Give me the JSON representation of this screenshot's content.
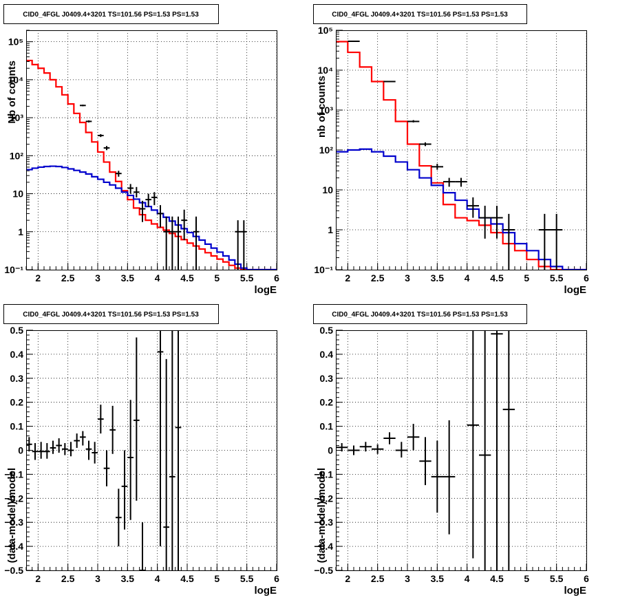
{
  "chart_data": [
    {
      "type": "line",
      "title": "CID0_4FGL J0409.4+3201 TS=101.56 PS=1.53 PS=1.53",
      "xlabel": "logE",
      "ylabel": "Nb of counts",
      "xlim": [
        1.8,
        6.0
      ],
      "ylim": [
        0.1,
        200000
      ],
      "yscale": "log",
      "grid": true,
      "xticks": [
        "2",
        "2.5",
        "3",
        "3.5",
        "4",
        "4.5",
        "5",
        "5.5",
        "6"
      ],
      "yticks": [
        "10⁻¹",
        "1",
        "10",
        "10²",
        "10³",
        "10⁴",
        "10⁵"
      ],
      "series": [
        {
          "color": "#ff0000",
          "style": "step",
          "edges": [
            1.8,
            1.9,
            2.0,
            2.1,
            2.2,
            2.3,
            2.4,
            2.5,
            2.6,
            2.7,
            2.8,
            2.9,
            3.0,
            3.1,
            3.2,
            3.3,
            3.4,
            3.5,
            3.6,
            3.7,
            3.8,
            3.9,
            4.0,
            4.1,
            4.2,
            4.3,
            4.4,
            4.5,
            4.6,
            4.7,
            4.8,
            4.9,
            5.0,
            5.1,
            5.2,
            5.3,
            5.4,
            5.5,
            5.6,
            5.7,
            5.8,
            5.9,
            6.0
          ],
          "values": [
            32000,
            25000,
            20000,
            15000,
            10000,
            6500,
            4000,
            2300,
            1300,
            750,
            410,
            230,
            125,
            68,
            37,
            21,
            12,
            7,
            4.2,
            2.8,
            2.0,
            1.6,
            1.3,
            1.1,
            0.9,
            0.75,
            0.62,
            0.5,
            0.42,
            0.35,
            0.28,
            0.23,
            0.19,
            0.16,
            0.13,
            0.11,
            0.1,
            0.1,
            0.1,
            0.1,
            0.1,
            0.1
          ]
        },
        {
          "color": "#0000cc",
          "style": "step",
          "edges": [
            1.8,
            1.9,
            2.0,
            2.1,
            2.2,
            2.3,
            2.4,
            2.5,
            2.6,
            2.7,
            2.8,
            2.9,
            3.0,
            3.1,
            3.2,
            3.3,
            3.4,
            3.5,
            3.6,
            3.7,
            3.8,
            3.9,
            4.0,
            4.1,
            4.2,
            4.3,
            4.4,
            4.5,
            4.6,
            4.7,
            4.8,
            4.9,
            5.0,
            5.1,
            5.2,
            5.3,
            5.4,
            5.5,
            5.6,
            5.7,
            5.8,
            5.9,
            6.0
          ],
          "values": [
            43,
            47,
            50,
            52,
            53,
            52,
            49,
            45,
            41,
            37,
            33,
            28,
            24,
            20,
            17,
            14,
            11,
            9,
            7.2,
            5.8,
            4.6,
            3.7,
            3.0,
            2.4,
            1.9,
            1.5,
            1.2,
            0.95,
            0.75,
            0.6,
            0.47,
            0.37,
            0.29,
            0.23,
            0.18,
            0.14,
            0.11,
            0.1,
            0.1,
            0.1,
            0.1,
            0.1
          ]
        },
        {
          "color": "#000000",
          "style": "errorbar",
          "points": [
            {
              "x": 2.75,
              "y": 2100,
              "xerr": 0.05,
              "ylo": 2000,
              "yhi": 2200
            },
            {
              "x": 2.85,
              "y": 800,
              "xerr": 0.05,
              "ylo": 750,
              "yhi": 850
            },
            {
              "x": 3.05,
              "y": 340,
              "xerr": 0.05,
              "ylo": 310,
              "yhi": 370
            },
            {
              "x": 3.15,
              "y": 160,
              "xerr": 0.05,
              "ylo": 140,
              "yhi": 180
            },
            {
              "x": 3.35,
              "y": 34,
              "xerr": 0.05,
              "ylo": 28,
              "yhi": 40
            },
            {
              "x": 3.55,
              "y": 14,
              "xerr": 0.05,
              "ylo": 10,
              "yhi": 18
            },
            {
              "x": 3.65,
              "y": 11,
              "xerr": 0.05,
              "ylo": 8,
              "yhi": 15
            },
            {
              "x": 3.75,
              "y": 4,
              "xerr": 0.05,
              "ylo": 1.8,
              "yhi": 6.5
            },
            {
              "x": 3.85,
              "y": 7,
              "xerr": 0.05,
              "ylo": 4.5,
              "yhi": 10
            },
            {
              "x": 3.95,
              "y": 8,
              "xerr": 0.05,
              "ylo": 5,
              "yhi": 11
            },
            {
              "x": 4.05,
              "y": 3,
              "xerr": 0.05,
              "ylo": 1.3,
              "yhi": 5
            },
            {
              "x": 4.15,
              "y": 1,
              "xerr": 0.05,
              "ylo": 0.1,
              "yhi": 2.5
            },
            {
              "x": 4.25,
              "y": 1,
              "xerr": 0.05,
              "ylo": 0.1,
              "yhi": 2.5
            },
            {
              "x": 4.35,
              "y": 1,
              "xerr": 0.05,
              "ylo": 0.1,
              "yhi": 2.5
            },
            {
              "x": 4.45,
              "y": 2,
              "xerr": 0.05,
              "ylo": 0.6,
              "yhi": 3.8
            },
            {
              "x": 4.65,
              "y": 1,
              "xerr": 0.05,
              "ylo": 0.1,
              "yhi": 2.5
            },
            {
              "x": 5.35,
              "y": 1,
              "xerr": 0.05,
              "ylo": 0.1,
              "yhi": 2.0
            },
            {
              "x": 5.45,
              "y": 1,
              "xerr": 0.05,
              "ylo": 0.1,
              "yhi": 2.0
            }
          ]
        }
      ]
    },
    {
      "type": "line",
      "title": "CID0_4FGL J0409.4+3201 TS=101.56 PS=1.53 PS=1.53",
      "xlabel": "logE",
      "ylabel": "nb of counts",
      "xlim": [
        1.8,
        6.0
      ],
      "ylim": [
        0.1,
        100000
      ],
      "yscale": "log",
      "grid": true,
      "xticks": [
        "2",
        "2.5",
        "3",
        "3.5",
        "4",
        "4.5",
        "5",
        "5.5",
        "6"
      ],
      "yticks": [
        "10⁻¹",
        "1",
        "10",
        "10²",
        "10³",
        "10⁴",
        "10⁵"
      ],
      "series": [
        {
          "color": "#ff0000",
          "style": "step",
          "edges": [
            1.8,
            2.0,
            2.2,
            2.4,
            2.6,
            2.8,
            3.0,
            3.2,
            3.4,
            3.6,
            3.8,
            4.0,
            4.2,
            4.4,
            4.6,
            4.8,
            5.0,
            5.2,
            5.4,
            5.6,
            5.8,
            6.0
          ],
          "values": [
            52000,
            28000,
            12000,
            5200,
            1800,
            520,
            140,
            40,
            15,
            4.3,
            2.0,
            1.7,
            1.3,
            0.85,
            0.45,
            0.3,
            0.18,
            0.12,
            0.1,
            0.1,
            0.1
          ]
        },
        {
          "color": "#0000cc",
          "style": "step",
          "edges": [
            1.8,
            2.0,
            2.2,
            2.4,
            2.6,
            2.8,
            3.0,
            3.2,
            3.4,
            3.6,
            3.8,
            4.0,
            4.2,
            4.4,
            4.6,
            4.8,
            5.0,
            5.2,
            5.4,
            5.6,
            5.8,
            6.0
          ],
          "values": [
            90,
            100,
            105,
            90,
            70,
            50,
            32,
            20,
            13,
            8.5,
            5.5,
            3.3,
            2.0,
            1.4,
            0.85,
            0.45,
            0.3,
            0.18,
            0.12,
            0.1,
            0.1
          ]
        },
        {
          "color": "#000000",
          "style": "errorbar",
          "points": [
            {
              "x": 2.1,
              "y": 53000,
              "xerr": 0.1,
              "ylo": 51000,
              "yhi": 55000
            },
            {
              "x": 2.7,
              "y": 5200,
              "xerr": 0.1,
              "ylo": 5000,
              "yhi": 5400
            },
            {
              "x": 3.1,
              "y": 520,
              "xerr": 0.1,
              "ylo": 490,
              "yhi": 560
            },
            {
              "x": 3.3,
              "y": 140,
              "xerr": 0.1,
              "ylo": 125,
              "yhi": 155
            },
            {
              "x": 3.5,
              "y": 38,
              "xerr": 0.1,
              "ylo": 32,
              "yhi": 45
            },
            {
              "x": 3.7,
              "y": 16,
              "xerr": 0.1,
              "ylo": 12,
              "yhi": 20
            },
            {
              "x": 3.9,
              "y": 16,
              "xerr": 0.1,
              "ylo": 12,
              "yhi": 20
            },
            {
              "x": 4.1,
              "y": 4,
              "xerr": 0.1,
              "ylo": 2,
              "yhi": 6.5
            },
            {
              "x": 4.3,
              "y": 2,
              "xerr": 0.1,
              "ylo": 0.6,
              "yhi": 4
            },
            {
              "x": 4.5,
              "y": 2,
              "xerr": 0.1,
              "ylo": 0.6,
              "yhi": 4
            },
            {
              "x": 4.7,
              "y": 1,
              "xerr": 0.1,
              "ylo": 0.1,
              "yhi": 2.5
            },
            {
              "x": 5.3,
              "y": 1,
              "xerr": 0.1,
              "ylo": 0.1,
              "yhi": 2.5
            },
            {
              "x": 5.5,
              "y": 1,
              "xerr": 0.1,
              "ylo": 0.1,
              "yhi": 2.5
            }
          ]
        }
      ]
    },
    {
      "type": "scatter",
      "title": "CID0_4FGL J0409.4+3201 TS=101.56 PS=1.53 PS=1.53",
      "xlabel": "logE",
      "ylabel": "(data-model)/model",
      "xlim": [
        1.8,
        6.0
      ],
      "ylim": [
        -0.5,
        0.5
      ],
      "grid": true,
      "xticks": [
        "2",
        "2.5",
        "3",
        "3.5",
        "4",
        "4.5",
        "5",
        "5.5",
        "6"
      ],
      "yticks": [
        "−0.5",
        "−0.4",
        "−0.3",
        "−0.2",
        "−0.1",
        "0",
        "0.1",
        "0.2",
        "0.3",
        "0.4",
        "0.5"
      ],
      "series": [
        {
          "color": "#000000",
          "style": "errorbar",
          "points": [
            {
              "x": 1.85,
              "y": 0.025,
              "xerr": 0.05,
              "ylo": -0.005,
              "yhi": 0.055
            },
            {
              "x": 1.95,
              "y": -0.005,
              "xerr": 0.05,
              "ylo": -0.04,
              "yhi": 0.03
            },
            {
              "x": 2.05,
              "y": -0.005,
              "xerr": 0.05,
              "ylo": -0.035,
              "yhi": 0.035
            },
            {
              "x": 2.15,
              "y": -0.005,
              "xerr": 0.05,
              "ylo": -0.035,
              "yhi": 0.03
            },
            {
              "x": 2.25,
              "y": 0.01,
              "xerr": 0.05,
              "ylo": -0.015,
              "yhi": 0.04
            },
            {
              "x": 2.35,
              "y": 0.02,
              "xerr": 0.05,
              "ylo": -0.01,
              "yhi": 0.05
            },
            {
              "x": 2.45,
              "y": 0.005,
              "xerr": 0.05,
              "ylo": -0.02,
              "yhi": 0.03
            },
            {
              "x": 2.55,
              "y": 0.0,
              "xerr": 0.05,
              "ylo": -0.025,
              "yhi": 0.035
            },
            {
              "x": 2.65,
              "y": 0.04,
              "xerr": 0.05,
              "ylo": 0.01,
              "yhi": 0.07
            },
            {
              "x": 2.75,
              "y": 0.055,
              "xerr": 0.05,
              "ylo": 0.02,
              "yhi": 0.08
            },
            {
              "x": 2.85,
              "y": 0.005,
              "xerr": 0.05,
              "ylo": -0.04,
              "yhi": 0.04
            },
            {
              "x": 2.95,
              "y": -0.01,
              "xerr": 0.05,
              "ylo": -0.055,
              "yhi": 0.035
            },
            {
              "x": 3.05,
              "y": 0.13,
              "xerr": 0.05,
              "ylo": 0.07,
              "yhi": 0.19
            },
            {
              "x": 3.15,
              "y": -0.075,
              "xerr": 0.05,
              "ylo": -0.15,
              "yhi": 0.0
            },
            {
              "x": 3.25,
              "y": 0.085,
              "xerr": 0.05,
              "ylo": -0.015,
              "yhi": 0.185
            },
            {
              "x": 3.35,
              "y": -0.28,
              "xerr": 0.05,
              "ylo": -0.4,
              "yhi": -0.16
            },
            {
              "x": 3.45,
              "y": -0.15,
              "xerr": 0.05,
              "ylo": -0.33,
              "yhi": 0.0
            },
            {
              "x": 3.55,
              "y": -0.03,
              "xerr": 0.05,
              "ylo": -0.29,
              "yhi": 0.21
            },
            {
              "x": 3.65,
              "y": 0.125,
              "xerr": 0.05,
              "ylo": -0.21,
              "yhi": 0.47
            },
            {
              "x": 3.75,
              "y": -0.5,
              "xerr": 0.05,
              "ylo": -0.5,
              "yhi": -0.3
            },
            {
              "x": 4.05,
              "y": 0.41,
              "xerr": 0.05,
              "ylo": -0.4,
              "yhi": 0.5
            },
            {
              "x": 4.15,
              "y": -0.32,
              "xerr": 0.05,
              "ylo": -0.5,
              "yhi": 0.38
            },
            {
              "x": 4.25,
              "y": -0.11,
              "xerr": 0.05,
              "ylo": -0.5,
              "yhi": 0.5
            },
            {
              "x": 4.35,
              "y": 0.095,
              "xerr": 0.05,
              "ylo": -0.5,
              "yhi": 0.5
            }
          ]
        }
      ]
    },
    {
      "type": "scatter",
      "title": "CID0_4FGL J0409.4+3201 TS=101.56 PS=1.53 PS=1.53",
      "xlabel": "logE",
      "ylabel": "(data-model)/model",
      "xlim": [
        1.8,
        6.0
      ],
      "ylim": [
        -0.5,
        0.5
      ],
      "grid": true,
      "xticks": [
        "2",
        "2.5",
        "3",
        "3.5",
        "4",
        "4.5",
        "5",
        "5.5",
        "6"
      ],
      "yticks": [
        "−0.5",
        "−0.4",
        "−0.3",
        "−0.2",
        "−0.1",
        "0",
        "0.1",
        "0.2",
        "0.3",
        "0.4",
        "0.5"
      ],
      "series": [
        {
          "color": "#000000",
          "style": "errorbar",
          "points": [
            {
              "x": 1.9,
              "y": 0.012,
              "xerr": 0.1,
              "ylo": -0.005,
              "yhi": 0.03
            },
            {
              "x": 2.1,
              "y": 0.0,
              "xerr": 0.1,
              "ylo": -0.02,
              "yhi": 0.02
            },
            {
              "x": 2.3,
              "y": 0.015,
              "xerr": 0.1,
              "ylo": -0.005,
              "yhi": 0.035
            },
            {
              "x": 2.5,
              "y": 0.005,
              "xerr": 0.1,
              "ylo": -0.015,
              "yhi": 0.025
            },
            {
              "x": 2.7,
              "y": 0.05,
              "xerr": 0.1,
              "ylo": 0.025,
              "yhi": 0.075
            },
            {
              "x": 2.9,
              "y": 0.0,
              "xerr": 0.1,
              "ylo": -0.03,
              "yhi": 0.035
            },
            {
              "x": 3.1,
              "y": 0.055,
              "xerr": 0.1,
              "ylo": 0.0,
              "yhi": 0.11
            },
            {
              "x": 3.3,
              "y": -0.045,
              "xerr": 0.1,
              "ylo": -0.145,
              "yhi": 0.055
            },
            {
              "x": 3.5,
              "y": -0.11,
              "xerr": 0.1,
              "ylo": -0.26,
              "yhi": 0.04
            },
            {
              "x": 3.7,
              "y": -0.11,
              "xerr": 0.1,
              "ylo": -0.35,
              "yhi": 0.125
            },
            {
              "x": 4.1,
              "y": 0.105,
              "xerr": 0.1,
              "ylo": -0.45,
              "yhi": 0.5
            },
            {
              "x": 4.3,
              "y": -0.02,
              "xerr": 0.1,
              "ylo": -0.5,
              "yhi": 0.5
            },
            {
              "x": 4.5,
              "y": 0.485,
              "xerr": 0.1,
              "ylo": -0.5,
              "yhi": 0.5
            },
            {
              "x": 4.7,
              "y": 0.17,
              "xerr": 0.1,
              "ylo": -0.5,
              "yhi": 0.5
            }
          ]
        }
      ]
    }
  ]
}
